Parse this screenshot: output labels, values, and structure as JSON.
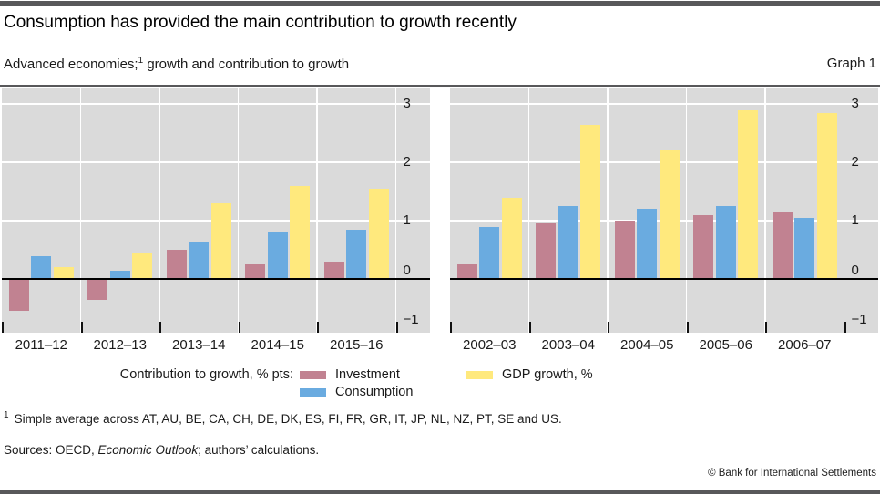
{
  "header": {
    "title": "Consumption has provided the main contribution to growth recently",
    "subtitle_pre": "Advanced economies;",
    "subtitle_sup": "1",
    "subtitle_post": " growth and contribution to growth",
    "graph_label": "Graph 1"
  },
  "colors": {
    "investment": "#c18291",
    "consumption": "#6aabe0",
    "gdp_growth": "#ffe97d",
    "plot_background": "#dadada",
    "gridline": "#ffffff",
    "zero_line": "#000000",
    "rule": "#58585a"
  },
  "chart_data": [
    {
      "type": "bar",
      "panel": "left",
      "categories": [
        "2011–12",
        "2012–13",
        "2013–14",
        "2014–15",
        "2015–16"
      ],
      "series": [
        {
          "name": "Investment",
          "color": "investment",
          "values": [
            -0.55,
            -0.35,
            0.5,
            0.25,
            0.3
          ]
        },
        {
          "name": "Consumption",
          "color": "consumption",
          "values": [
            0.4,
            0.15,
            0.65,
            0.8,
            0.85
          ]
        },
        {
          "name": "GDP growth, %",
          "color": "gdp_growth",
          "values": [
            0.2,
            0.45,
            1.3,
            1.6,
            1.55
          ]
        }
      ],
      "ylabel": "",
      "yticks": [
        3,
        2,
        1,
        0,
        -1
      ],
      "ylim": [
        -0.92,
        3.27
      ],
      "grid": true,
      "tick_label_side": "right"
    },
    {
      "type": "bar",
      "panel": "right",
      "categories": [
        "2002–03",
        "2003–04",
        "2004–05",
        "2005–06",
        "2006–07"
      ],
      "series": [
        {
          "name": "Investment",
          "color": "investment",
          "values": [
            0.25,
            0.95,
            1.0,
            1.1,
            1.15
          ]
        },
        {
          "name": "Consumption",
          "color": "consumption",
          "values": [
            0.9,
            1.25,
            1.2,
            1.25,
            1.05
          ]
        },
        {
          "name": "GDP growth, %",
          "color": "gdp_growth",
          "values": [
            1.4,
            2.65,
            2.2,
            2.9,
            2.85
          ]
        }
      ],
      "ylabel": "",
      "yticks": [
        3,
        2,
        1,
        0,
        -1
      ],
      "ylim": [
        -0.92,
        3.27
      ],
      "grid": true,
      "tick_label_side": "right"
    }
  ],
  "legend": {
    "label": "Contribution to growth, % pts:",
    "items": [
      {
        "label": "Investment",
        "color": "investment"
      },
      {
        "label": "Consumption",
        "color": "consumption"
      },
      {
        "label": "GDP growth, %",
        "color": "gdp_growth"
      }
    ]
  },
  "footnote": {
    "marker": "1",
    "text": "Simple average across AT, AU, BE, CA, CH, DE, DK, ES, FI, FR, GR, IT, JP, NL, NZ, PT, SE and US."
  },
  "sources": {
    "pre": "Sources: OECD, ",
    "italic": "Economic Outlook",
    "post": "; authors’ calculations."
  },
  "footer": {
    "copyright": "© Bank for International Settlements"
  }
}
